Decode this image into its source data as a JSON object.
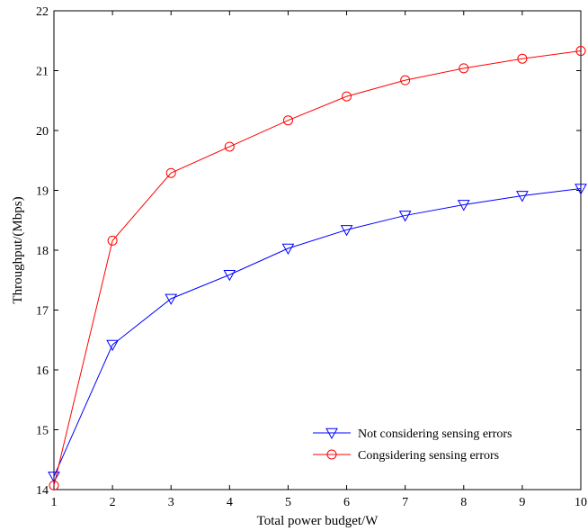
{
  "chart_data": {
    "type": "line",
    "xlabel": "Total power budget/W",
    "ylabel": "Throughput/(Mbps)",
    "x": [
      1,
      2,
      3,
      4,
      5,
      6,
      7,
      8,
      9,
      10
    ],
    "xlim": [
      1,
      10
    ],
    "ylim": [
      14,
      22
    ],
    "xticks": [
      "1",
      "2",
      "3",
      "4",
      "5",
      "6",
      "7",
      "8",
      "9",
      "10"
    ],
    "yticks": [
      "14",
      "15",
      "16",
      "17",
      "18",
      "19",
      "20",
      "21",
      "22"
    ],
    "grid": false,
    "legend_position": "bottom-right",
    "series": [
      {
        "name": "Not considering sensing errors",
        "color": "#0000ff",
        "marker": "triangle-down",
        "values": [
          14.22,
          16.42,
          17.19,
          17.59,
          18.03,
          18.34,
          18.58,
          18.76,
          18.91,
          19.03
        ]
      },
      {
        "name": "Congsidering sensing errors",
        "color": "#ff0000",
        "marker": "circle",
        "values": [
          14.07,
          18.16,
          19.29,
          19.73,
          20.17,
          20.57,
          20.84,
          21.04,
          21.2,
          21.33
        ]
      }
    ]
  }
}
